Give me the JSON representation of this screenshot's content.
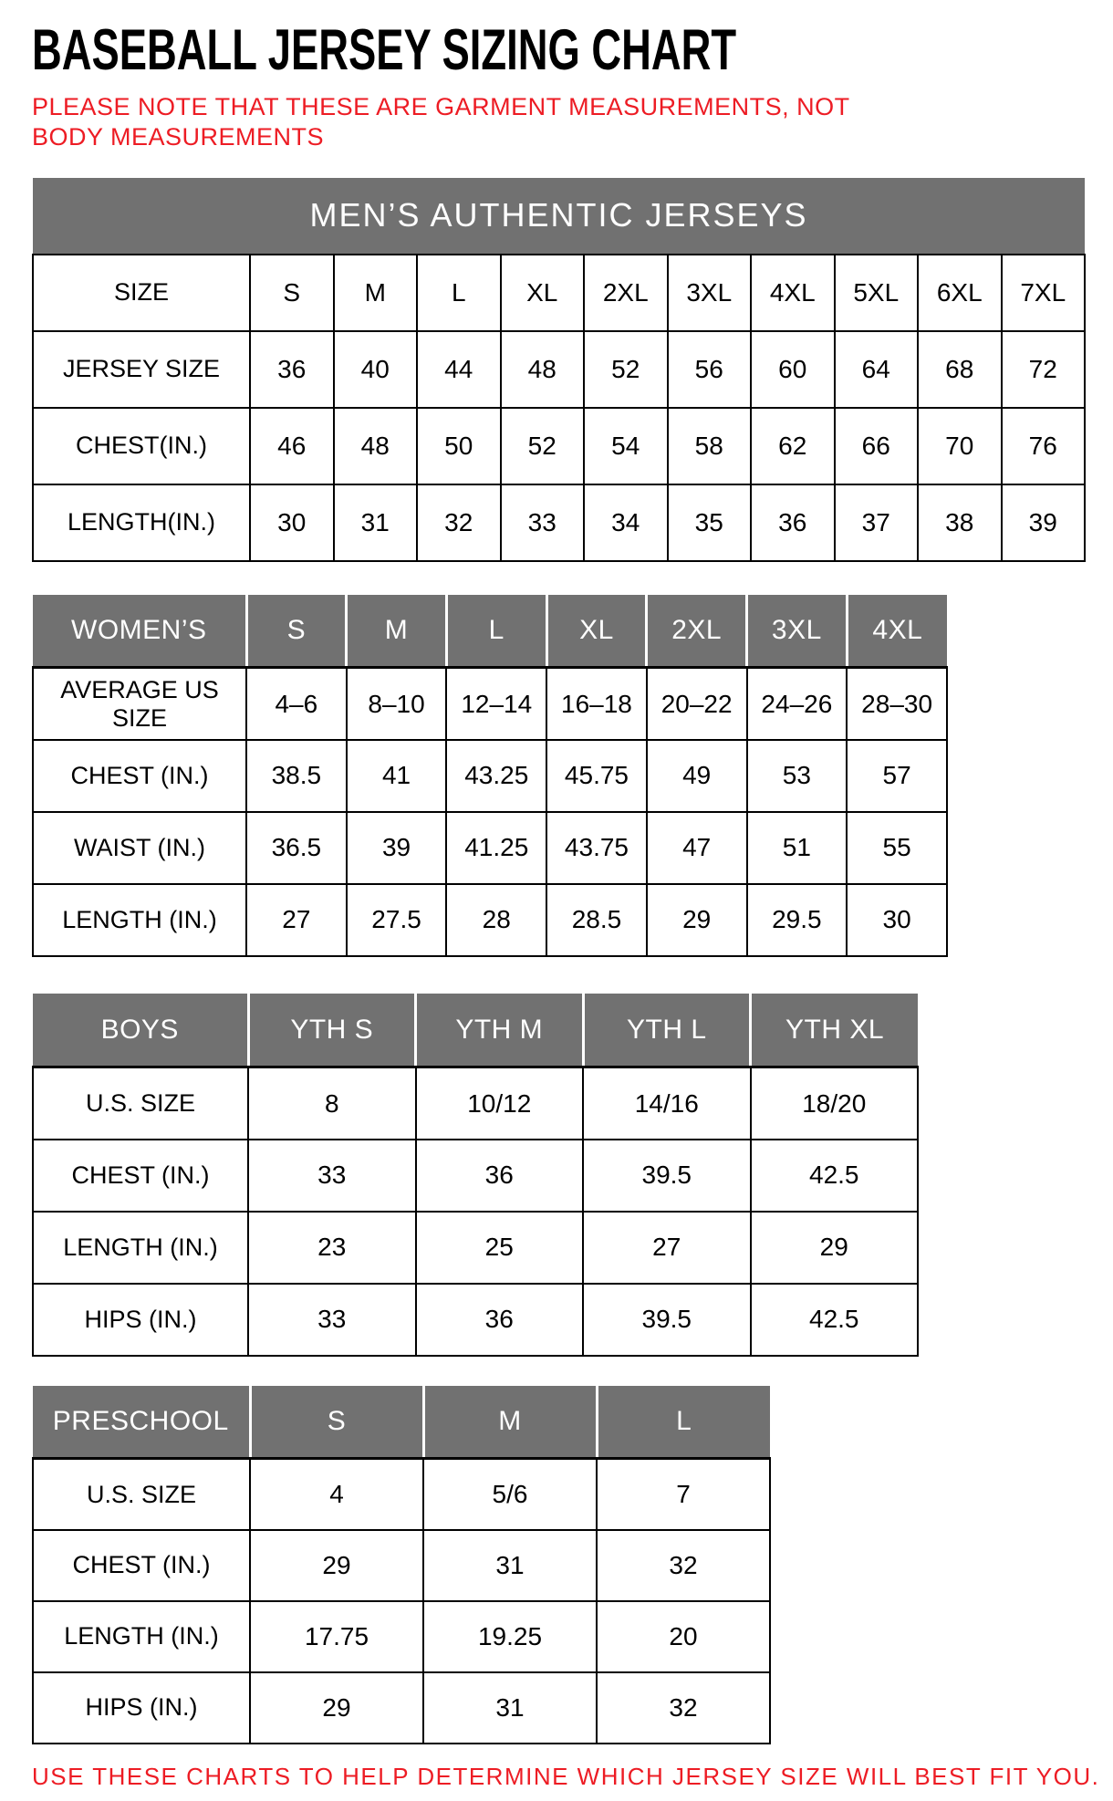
{
  "page": {
    "title": "BASEBALL JERSEY SIZING CHART",
    "note": "PLEASE NOTE THAT THESE ARE GARMENT MEASUREMENTS, NOT BODY MEASUREMENTS",
    "footer": "USE THESE CHARTS TO HELP DETERMINE WHICH JERSEY SIZE WILL BEST FIT YOU."
  },
  "colors": {
    "accent_red": "#ed1c24",
    "header_gray": "#717171",
    "header_text": "#ffffff",
    "border_black": "#000000"
  },
  "chart_data": [
    {
      "type": "table",
      "name": "mens",
      "title": "MEN’S AUTHENTIC JERSEYS",
      "header": null,
      "rows": [
        [
          "SIZE",
          "S",
          "M",
          "L",
          "XL",
          "2XL",
          "3XL",
          "4XL",
          "5XL",
          "6XL",
          "7XL"
        ],
        [
          "JERSEY SIZE",
          "36",
          "40",
          "44",
          "48",
          "52",
          "56",
          "60",
          "64",
          "68",
          "72"
        ],
        [
          "CHEST(IN.)",
          "46",
          "48",
          "50",
          "52",
          "54",
          "58",
          "62",
          "66",
          "70",
          "76"
        ],
        [
          "LENGTH(IN.)",
          "30",
          "31",
          "32",
          "33",
          "34",
          "35",
          "36",
          "37",
          "38",
          "39"
        ]
      ]
    },
    {
      "type": "table",
      "name": "womens",
      "title": null,
      "header": [
        "WOMEN’S",
        "S",
        "M",
        "L",
        "XL",
        "2XL",
        "3XL",
        "4XL"
      ],
      "rows": [
        [
          "AVERAGE US SIZE",
          "4–6",
          "8–10",
          "12–14",
          "16–18",
          "20–22",
          "24–26",
          "28–30"
        ],
        [
          "CHEST (IN.)",
          "38.5",
          "41",
          "43.25",
          "45.75",
          "49",
          "53",
          "57"
        ],
        [
          "WAIST (IN.)",
          "36.5",
          "39",
          "41.25",
          "43.75",
          "47",
          "51",
          "55"
        ],
        [
          "LENGTH (IN.)",
          "27",
          "27.5",
          "28",
          "28.5",
          "29",
          "29.5",
          "30"
        ]
      ]
    },
    {
      "type": "table",
      "name": "boys",
      "title": null,
      "header": [
        "BOYS",
        "YTH S",
        "YTH M",
        "YTH L",
        "YTH XL"
      ],
      "rows": [
        [
          "U.S. SIZE",
          "8",
          "10/12",
          "14/16",
          "18/20"
        ],
        [
          "CHEST (IN.)",
          "33",
          "36",
          "39.5",
          "42.5"
        ],
        [
          "LENGTH (IN.)",
          "23",
          "25",
          "27",
          "29"
        ],
        [
          "HIPS (IN.)",
          "33",
          "36",
          "39.5",
          "42.5"
        ]
      ]
    },
    {
      "type": "table",
      "name": "preschool",
      "title": null,
      "header": [
        "PRESCHOOL",
        "S",
        "M",
        "L"
      ],
      "rows": [
        [
          "U.S. SIZE",
          "4",
          "5/6",
          "7"
        ],
        [
          "CHEST (IN.)",
          "29",
          "31",
          "32"
        ],
        [
          "LENGTH (IN.)",
          "17.75",
          "19.25",
          "20"
        ],
        [
          "HIPS (IN.)",
          "29",
          "31",
          "32"
        ]
      ]
    }
  ]
}
